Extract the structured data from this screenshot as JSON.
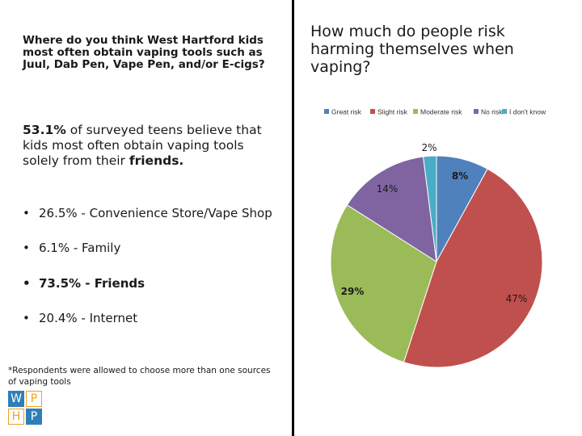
{
  "left": {
    "question": "Where do you think West Hartford kids most often obtain vaping tools such as Juul, Dab Pen, Vape Pen, and/or E-cigs?",
    "highlight_bold_1": "53.1%",
    "highlight_text": " of surveyed teens believe that kids most often obtain vaping tools solely from their ",
    "highlight_bold_2": "friends.",
    "bullets": [
      {
        "text": "26.5% - Convenience Store/Vape Shop",
        "bold": false
      },
      {
        "text": "6.1% - Family",
        "bold": false
      },
      {
        "text": "73.5% - Friends",
        "bold": true
      },
      {
        "text": "20.4% - Internet",
        "bold": false
      }
    ],
    "bullet_char": "•",
    "footnote": "*Respondents were allowed to choose more than one sources of vaping tools"
  },
  "logo": {
    "letters": [
      "W",
      "P",
      "H",
      "P"
    ],
    "colors": [
      "#2e7fb8",
      "#f0a020",
      "#f0a020",
      "#2e7fb8"
    ]
  },
  "chart_data": {
    "type": "pie",
    "title": "How much do people risk harming themselves when vaping?",
    "legend_position": "top",
    "categories": [
      "Great risk",
      "Slight risk",
      "Moderate risk",
      "No risk",
      "I don't know"
    ],
    "values": [
      8,
      47,
      29,
      14,
      2
    ],
    "labels": [
      "8%",
      "47%",
      "29%",
      "14%",
      "2%"
    ],
    "colors": [
      "#4f81bd",
      "#c0504d",
      "#9bbb59",
      "#8064a2",
      "#4bacc6"
    ]
  }
}
